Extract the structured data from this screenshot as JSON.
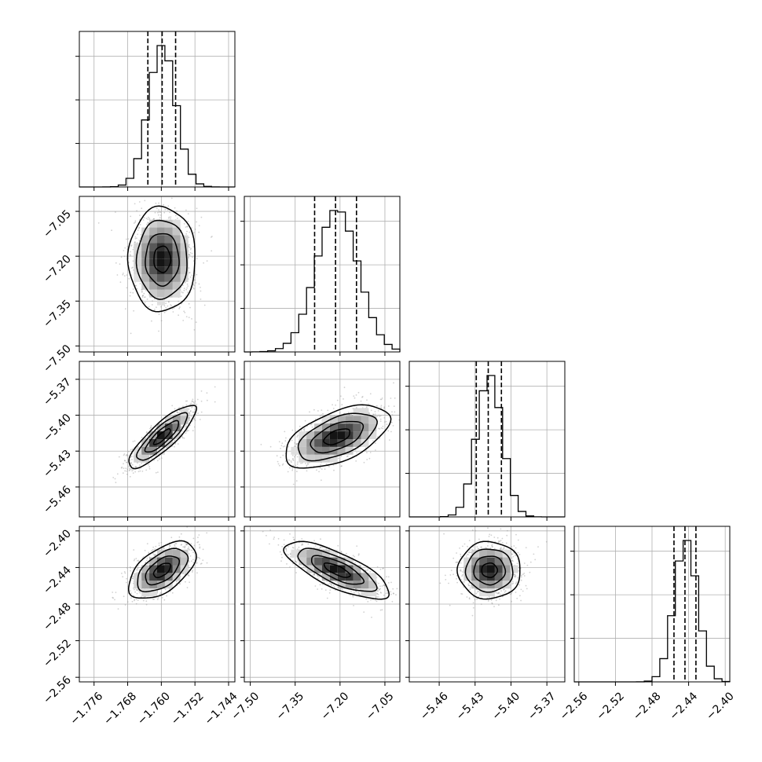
{
  "chart_data": {
    "type": "corner",
    "parameters": [
      {
        "range": [
          -1.7795,
          -1.7425
        ],
        "ticks": [
          -1.776,
          -1.768,
          -1.76,
          -1.752,
          -1.744
        ],
        "tick_labels": [
          "−1.776",
          "−1.768",
          "−1.760",
          "−1.752",
          "−1.744"
        ],
        "mean": -1.7598,
        "sd": 0.0032,
        "quantiles": [
          -1.7632,
          -1.7598,
          -1.7566
        ]
      },
      {
        "range": [
          -7.52,
          -7.0
        ],
        "ticks": [
          -7.5,
          -7.35,
          -7.2,
          -7.05
        ],
        "tick_labels": [
          "−7.50",
          "−7.35",
          "−7.20",
          "−7.05"
        ],
        "mean": -7.21,
        "sd": 0.07,
        "quantiles": [
          -7.285,
          -7.215,
          -7.145
        ]
      },
      {
        "range": [
          -5.485,
          -5.355
        ],
        "ticks": [
          -5.46,
          -5.43,
          -5.4,
          -5.37
        ],
        "tick_labels": [
          "−5.46",
          "−5.43",
          "−5.40",
          "−5.37"
        ],
        "mean": -5.418,
        "sd": 0.0105,
        "quantiles": [
          -5.429,
          -5.419,
          -5.408
        ]
      },
      {
        "range": [
          -2.565,
          -2.395
        ],
        "ticks": [
          -2.56,
          -2.52,
          -2.48,
          -2.44,
          -2.4
        ],
        "tick_labels": [
          "−2.56",
          "−2.52",
          "−2.48",
          "−2.44",
          "−2.40"
        ],
        "mean": -2.443,
        "sd": 0.0125,
        "quantiles": [
          -2.456,
          -2.444,
          -2.432
        ]
      }
    ],
    "correlations": [
      [
        1,
        0.0,
        0.85,
        0.55
      ],
      [
        0.0,
        1,
        0.55,
        -0.75
      ],
      [
        0.85,
        0.55,
        1,
        0.0
      ],
      [
        0.55,
        -0.75,
        0.0,
        1
      ]
    ],
    "histogram_bins": 20,
    "contour_levels_sigma": [
      0.5,
      1.0,
      1.5,
      2.0
    ],
    "grid": true
  }
}
